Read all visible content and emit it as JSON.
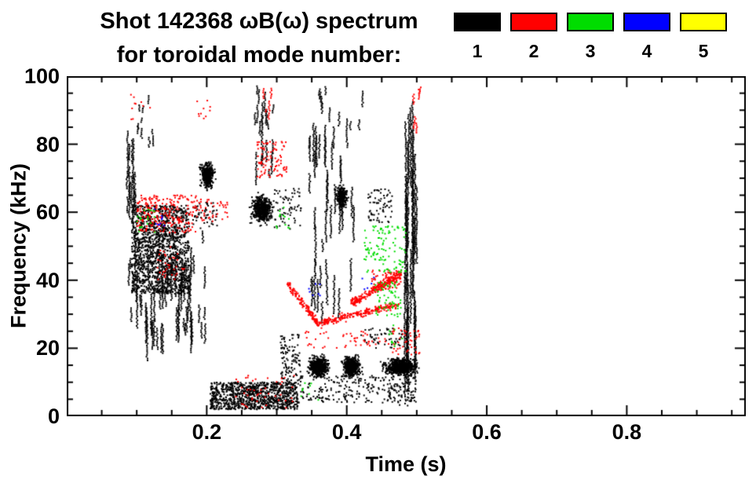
{
  "header": {
    "title_line1": "Shot 142368 ωB(ω) spectrum",
    "title_line2": "for toroidal mode number:"
  },
  "legend": {
    "modes": [
      {
        "label": "1",
        "color": "#000000"
      },
      {
        "label": "2",
        "color": "#ff0000"
      },
      {
        "label": "3",
        "color": "#00dd00"
      },
      {
        "label": "4",
        "color": "#0000ff"
      },
      {
        "label": "5",
        "color": "#ffff00"
      }
    ]
  },
  "chart_data": {
    "type": "scatter",
    "title": "Shot 142368 ωB(ω) spectrum for toroidal mode number: 1 2 3 4 5",
    "xlabel": "Time (s)",
    "ylabel": "Frequency (kHz)",
    "xlim": [
      0.0,
      0.97
    ],
    "ylim": [
      0,
      100
    ],
    "xticks": [
      0.2,
      0.4,
      0.6,
      0.8
    ],
    "xtick_labels": [
      "0.2",
      "0.4",
      "0.6",
      "0.8"
    ],
    "minor_x_step": 0.05,
    "yticks": [
      0,
      20,
      40,
      60,
      80,
      100
    ],
    "ytick_labels": [
      "0",
      "20",
      "40",
      "60",
      "80",
      "100"
    ],
    "minor_y_step": 5,
    "grid": false,
    "legend_position": "top-right",
    "series": [
      {
        "name": "1",
        "color": "#000000",
        "clusters": [
          {
            "shape": "scatter",
            "t": [
              0.093,
              0.175
            ],
            "f": [
              36,
              62
            ],
            "n": 1500
          },
          {
            "shape": "vstreak",
            "t": [
              0.088,
              0.185
            ],
            "f": [
              22,
              46
            ],
            "n": 55,
            "len": [
              3,
              12
            ]
          },
          {
            "shape": "vstreak",
            "t": [
              0.085,
              0.1
            ],
            "f": [
              55,
              80
            ],
            "n": 14,
            "len": [
              4,
              12
            ]
          },
          {
            "shape": "vstreak",
            "t": [
              0.1,
              0.13
            ],
            "f": [
              80,
              95
            ],
            "n": 10,
            "len": [
              1,
              5
            ]
          },
          {
            "shape": "blob",
            "t": [
              0.183,
              0.218
            ],
            "f": [
              64,
              78
            ],
            "n": 420
          },
          {
            "shape": "scatter",
            "t": [
              0.18,
              0.215
            ],
            "f": [
              55,
              63
            ],
            "n": 55
          },
          {
            "shape": "vstreak",
            "t": [
              0.188,
              0.2
            ],
            "f": [
              20,
              55
            ],
            "n": 6,
            "len": [
              2,
              7
            ]
          },
          {
            "shape": "blob",
            "t": [
              0.253,
              0.305
            ],
            "f": [
              54,
              68
            ],
            "n": 560
          },
          {
            "shape": "scatter",
            "t": [
              0.295,
              0.335
            ],
            "f": [
              55,
              67
            ],
            "n": 70
          },
          {
            "shape": "vstreak",
            "t": [
              0.265,
              0.298
            ],
            "f": [
              70,
              96
            ],
            "n": 22,
            "len": [
              2,
              8
            ]
          },
          {
            "shape": "scatter",
            "t": [
              0.205,
              0.33
            ],
            "f": [
              2,
              10
            ],
            "n": 1000
          },
          {
            "shape": "scatter",
            "t": [
              0.305,
              0.335
            ],
            "f": [
              10,
              24
            ],
            "n": 110
          },
          {
            "shape": "blob",
            "t": [
              0.335,
              0.385
            ],
            "f": [
              9,
              20
            ],
            "n": 560
          },
          {
            "shape": "blob",
            "t": [
              0.385,
              0.43
            ],
            "f": [
              9,
              20
            ],
            "n": 560
          },
          {
            "shape": "blob",
            "t": [
              0.435,
              0.52
            ],
            "f": [
              10,
              19
            ],
            "n": 700
          },
          {
            "shape": "scatter",
            "t": [
              0.33,
              0.5
            ],
            "f": [
              4,
              12
            ],
            "n": 240
          },
          {
            "shape": "vstreak",
            "t": [
              0.345,
              0.41
            ],
            "f": [
              30,
              85
            ],
            "n": 40,
            "len": [
              3,
              12
            ]
          },
          {
            "shape": "blob",
            "t": [
              0.378,
              0.408
            ],
            "f": [
              59,
              70
            ],
            "n": 260
          },
          {
            "shape": "vstreak",
            "t": [
              0.36,
              0.425
            ],
            "f": [
              85,
              97
            ],
            "n": 10,
            "len": [
              2,
              5
            ]
          },
          {
            "shape": "vstreak",
            "t": [
              0.483,
              0.5
            ],
            "f": [
              20,
              80
            ],
            "n": 26,
            "len": [
              12,
              40
            ]
          },
          {
            "shape": "scatter",
            "t": [
              0.43,
              0.465
            ],
            "f": [
              57,
              67
            ],
            "n": 70
          },
          {
            "shape": "scatter",
            "t": [
              0.42,
              0.48
            ],
            "f": [
              20,
              26
            ],
            "n": 55
          },
          {
            "shape": "scatter",
            "t": [
              0.46,
              0.5
            ],
            "f": [
              3,
              9
            ],
            "n": 40
          }
        ]
      },
      {
        "name": "2",
        "color": "#ff0000",
        "clusters": [
          {
            "shape": "scatter",
            "t": [
              0.1,
              0.185
            ],
            "f": [
              54,
              65
            ],
            "n": 240
          },
          {
            "shape": "scatter",
            "t": [
              0.128,
              0.168
            ],
            "f": [
              40,
              50
            ],
            "n": 35
          },
          {
            "shape": "scatter",
            "t": [
              0.185,
              0.23
            ],
            "f": [
              57,
              64
            ],
            "n": 45
          },
          {
            "shape": "scatter",
            "t": [
              0.272,
              0.315
            ],
            "f": [
              70,
              81
            ],
            "n": 90
          },
          {
            "shape": "vstreak",
            "t": [
              0.276,
              0.292
            ],
            "f": [
              87,
              97
            ],
            "n": 5,
            "len": [
              1,
              4
            ]
          },
          {
            "shape": "curve",
            "t": [
              0.315,
              0.36
            ],
            "f": [
              39,
              27
            ],
            "th": 1.5,
            "n": 130
          },
          {
            "shape": "curve",
            "t": [
              0.355,
              0.475
            ],
            "f": [
              27,
              33
            ],
            "th": 1.2,
            "n": 230
          },
          {
            "shape": "curve",
            "t": [
              0.405,
              0.478
            ],
            "f": [
              33,
              42
            ],
            "th": 1.5,
            "n": 230
          },
          {
            "shape": "scatter",
            "t": [
              0.435,
              0.478
            ],
            "f": [
              37,
              43
            ],
            "n": 90
          },
          {
            "shape": "vstreak",
            "t": [
              0.488,
              0.505
            ],
            "f": [
              84,
              96
            ],
            "n": 6,
            "len": [
              1,
              4
            ]
          },
          {
            "shape": "scatter",
            "t": [
              0.465,
              0.505
            ],
            "f": [
              18,
              26
            ],
            "n": 45
          },
          {
            "shape": "scatter",
            "t": [
              0.24,
              0.33
            ],
            "f": [
              2,
              12
            ],
            "n": 45
          },
          {
            "shape": "scatter",
            "t": [
              0.34,
              0.46
            ],
            "f": [
              20,
              25
            ],
            "n": 50
          },
          {
            "shape": "scatter",
            "t": [
              0.185,
              0.205
            ],
            "f": [
              87,
              95
            ],
            "n": 10
          },
          {
            "shape": "scatter",
            "t": [
              0.09,
              0.12
            ],
            "f": [
              87,
              96
            ],
            "n": 10
          }
        ]
      },
      {
        "name": "3",
        "color": "#00dd00",
        "clusters": [
          {
            "shape": "scatter",
            "t": [
              0.425,
              0.485
            ],
            "f": [
              42,
              56
            ],
            "n": 110
          },
          {
            "shape": "scatter",
            "t": [
              0.44,
              0.478
            ],
            "f": [
              29,
              40
            ],
            "n": 60
          },
          {
            "shape": "scatter",
            "t": [
              0.1,
              0.128
            ],
            "f": [
              54,
              61
            ],
            "n": 20
          },
          {
            "shape": "scatter",
            "t": [
              0.298,
              0.318
            ],
            "f": [
              55,
              62
            ],
            "n": 12
          },
          {
            "shape": "scatter",
            "t": [
              0.455,
              0.48
            ],
            "f": [
              20,
              27
            ],
            "n": 12
          },
          {
            "shape": "scatter",
            "t": [
              0.33,
              0.36
            ],
            "f": [
              3,
              10
            ],
            "n": 8
          }
        ]
      },
      {
        "name": "4",
        "color": "#0000ff",
        "clusters": [
          {
            "shape": "scatter",
            "t": [
              0.124,
              0.142
            ],
            "f": [
              56,
              61
            ],
            "n": 9
          },
          {
            "shape": "scatter",
            "t": [
              0.344,
              0.362
            ],
            "f": [
              35,
              39
            ],
            "n": 7
          },
          {
            "shape": "scatter",
            "t": [
              0.42,
              0.44
            ],
            "f": [
              36,
              41
            ],
            "n": 5
          }
        ]
      },
      {
        "name": "5",
        "color": "#ffff00",
        "clusters": []
      }
    ]
  }
}
